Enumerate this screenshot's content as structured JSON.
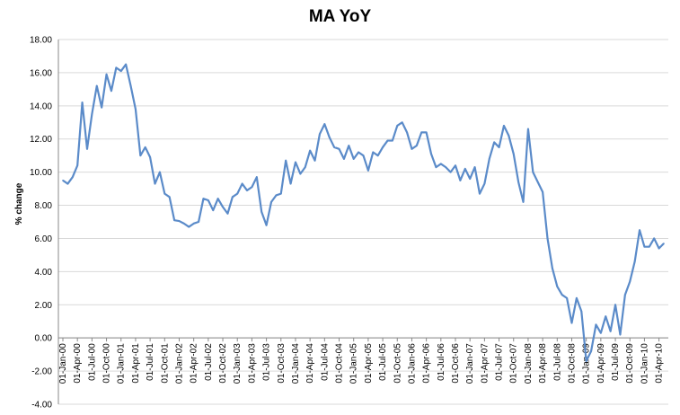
{
  "chart_data": {
    "type": "line",
    "title": "MA YoY",
    "xlabel": "",
    "ylabel": "% change",
    "ylim": [
      -4,
      18
    ],
    "y_ticks": [
      "18.00",
      "16.00",
      "14.00",
      "12.00",
      "10.00",
      "8.00",
      "6.00",
      "4.00",
      "2.00",
      "0.00",
      "-2.00",
      "-4.00"
    ],
    "grid": "horizontal",
    "legend": "none",
    "line_color": "#5b8bc9",
    "x_tick_labels": [
      "01-Jan-00",
      "01-Apr-00",
      "01-Jul-00",
      "01-Oct-00",
      "01-Jan-01",
      "01-Apr-01",
      "01-Jul-01",
      "01-Oct-01",
      "01-Jan-02",
      "01-Apr-02",
      "01-Jul-02",
      "01-Oct-02",
      "01-Jan-03",
      "01-Apr-03",
      "01-Jul-03",
      "01-Oct-03",
      "01-Jan-04",
      "01-Apr-04",
      "01-Jul-04",
      "01-Oct-04",
      "01-Jan-05",
      "01-Apr-05",
      "01-Jul-05",
      "01-Oct-05",
      "01-Jan-06",
      "01-Apr-06",
      "01-Jul-06",
      "01-Oct-06",
      "01-Jan-07",
      "01-Apr-07",
      "01-Jul-07",
      "01-Oct-07",
      "01-Jan-08",
      "01-Apr-08",
      "01-Jul-08",
      "01-Oct-08",
      "01-Jan-09",
      "01-Apr-09",
      "01-Jul-09",
      "01-Oct-09",
      "01-Jan-10",
      "01-Apr-10"
    ],
    "x_start": "2000-01",
    "x_frequency": "monthly",
    "values": [
      9.5,
      9.3,
      9.7,
      10.4,
      14.2,
      11.4,
      13.5,
      15.2,
      13.9,
      15.9,
      14.9,
      16.3,
      16.1,
      16.5,
      15.2,
      13.8,
      11.0,
      11.5,
      10.9,
      9.3,
      10.0,
      8.7,
      8.5,
      7.1,
      7.05,
      6.9,
      6.7,
      6.9,
      7.0,
      8.4,
      8.3,
      7.7,
      8.4,
      7.9,
      7.5,
      8.5,
      8.7,
      9.3,
      8.9,
      9.1,
      9.7,
      7.6,
      6.8,
      8.2,
      8.6,
      8.7,
      10.7,
      9.3,
      10.6,
      9.9,
      10.3,
      11.3,
      10.7,
      12.3,
      12.9,
      12.1,
      11.5,
      11.4,
      10.8,
      11.6,
      10.8,
      11.2,
      11.0,
      10.1,
      11.2,
      11.0,
      11.5,
      11.9,
      11.9,
      12.8,
      13.0,
      12.4,
      11.4,
      11.6,
      12.4,
      12.4,
      11.1,
      10.3,
      10.5,
      10.3,
      10.0,
      10.4,
      9.5,
      10.2,
      9.6,
      10.3,
      8.7,
      9.3,
      10.8,
      11.8,
      11.5,
      12.8,
      12.2,
      11.1,
      9.4,
      8.2,
      12.6,
      10.0,
      9.4,
      8.8,
      6.0,
      4.2,
      3.1,
      2.6,
      2.4,
      0.9,
      2.4,
      1.6,
      -1.4,
      -0.8,
      0.8,
      0.3,
      1.3,
      0.4,
      2.0,
      0.2,
      2.6,
      3.4,
      4.6,
      6.5,
      5.5,
      5.5,
      6.0,
      5.4,
      5.7
    ]
  }
}
